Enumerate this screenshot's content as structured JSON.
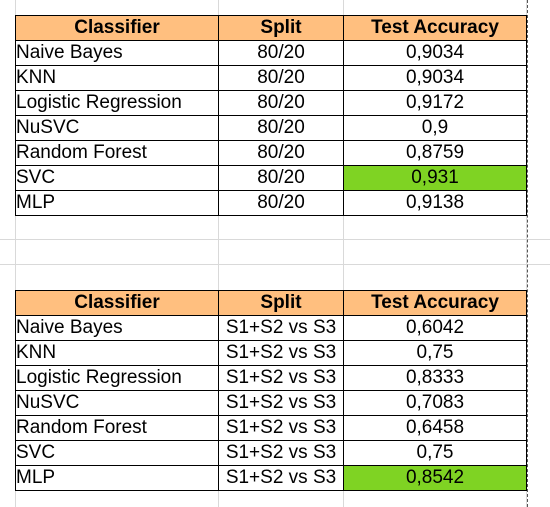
{
  "colors": {
    "header_fill": "#ffbf7f",
    "highlight_fill": "#7fd323"
  },
  "table1": {
    "headers": [
      "Classifier",
      "Split",
      "Test Accuracy"
    ],
    "rows": [
      [
        "Naive Bayes",
        "80/20",
        "0,9034"
      ],
      [
        "KNN",
        "80/20",
        "0,9034"
      ],
      [
        "Logistic Regression",
        "80/20",
        "0,9172"
      ],
      [
        "NuSVC",
        "80/20",
        "0,9"
      ],
      [
        "Random Forest",
        "80/20",
        "0,8759"
      ],
      [
        "SVC",
        "80/20",
        "0,931"
      ],
      [
        "MLP",
        "80/20",
        "0,9138"
      ]
    ],
    "highlight_row": 5
  },
  "table2": {
    "headers": [
      "Classifier",
      "Split",
      "Test Accuracy"
    ],
    "rows": [
      [
        "Naive Bayes",
        "S1+S2 vs S3",
        "0,6042"
      ],
      [
        "KNN",
        "S1+S2 vs S3",
        "0,75"
      ],
      [
        "Logistic Regression",
        "S1+S2 vs S3",
        "0,8333"
      ],
      [
        "NuSVC",
        "S1+S2 vs S3",
        "0,7083"
      ],
      [
        "Random Forest",
        "S1+S2 vs S3",
        "0,6458"
      ],
      [
        "SVC",
        "S1+S2 vs S3",
        "0,75"
      ],
      [
        "MLP",
        "S1+S2 vs S3",
        "0,8542"
      ]
    ],
    "highlight_row": 6
  }
}
